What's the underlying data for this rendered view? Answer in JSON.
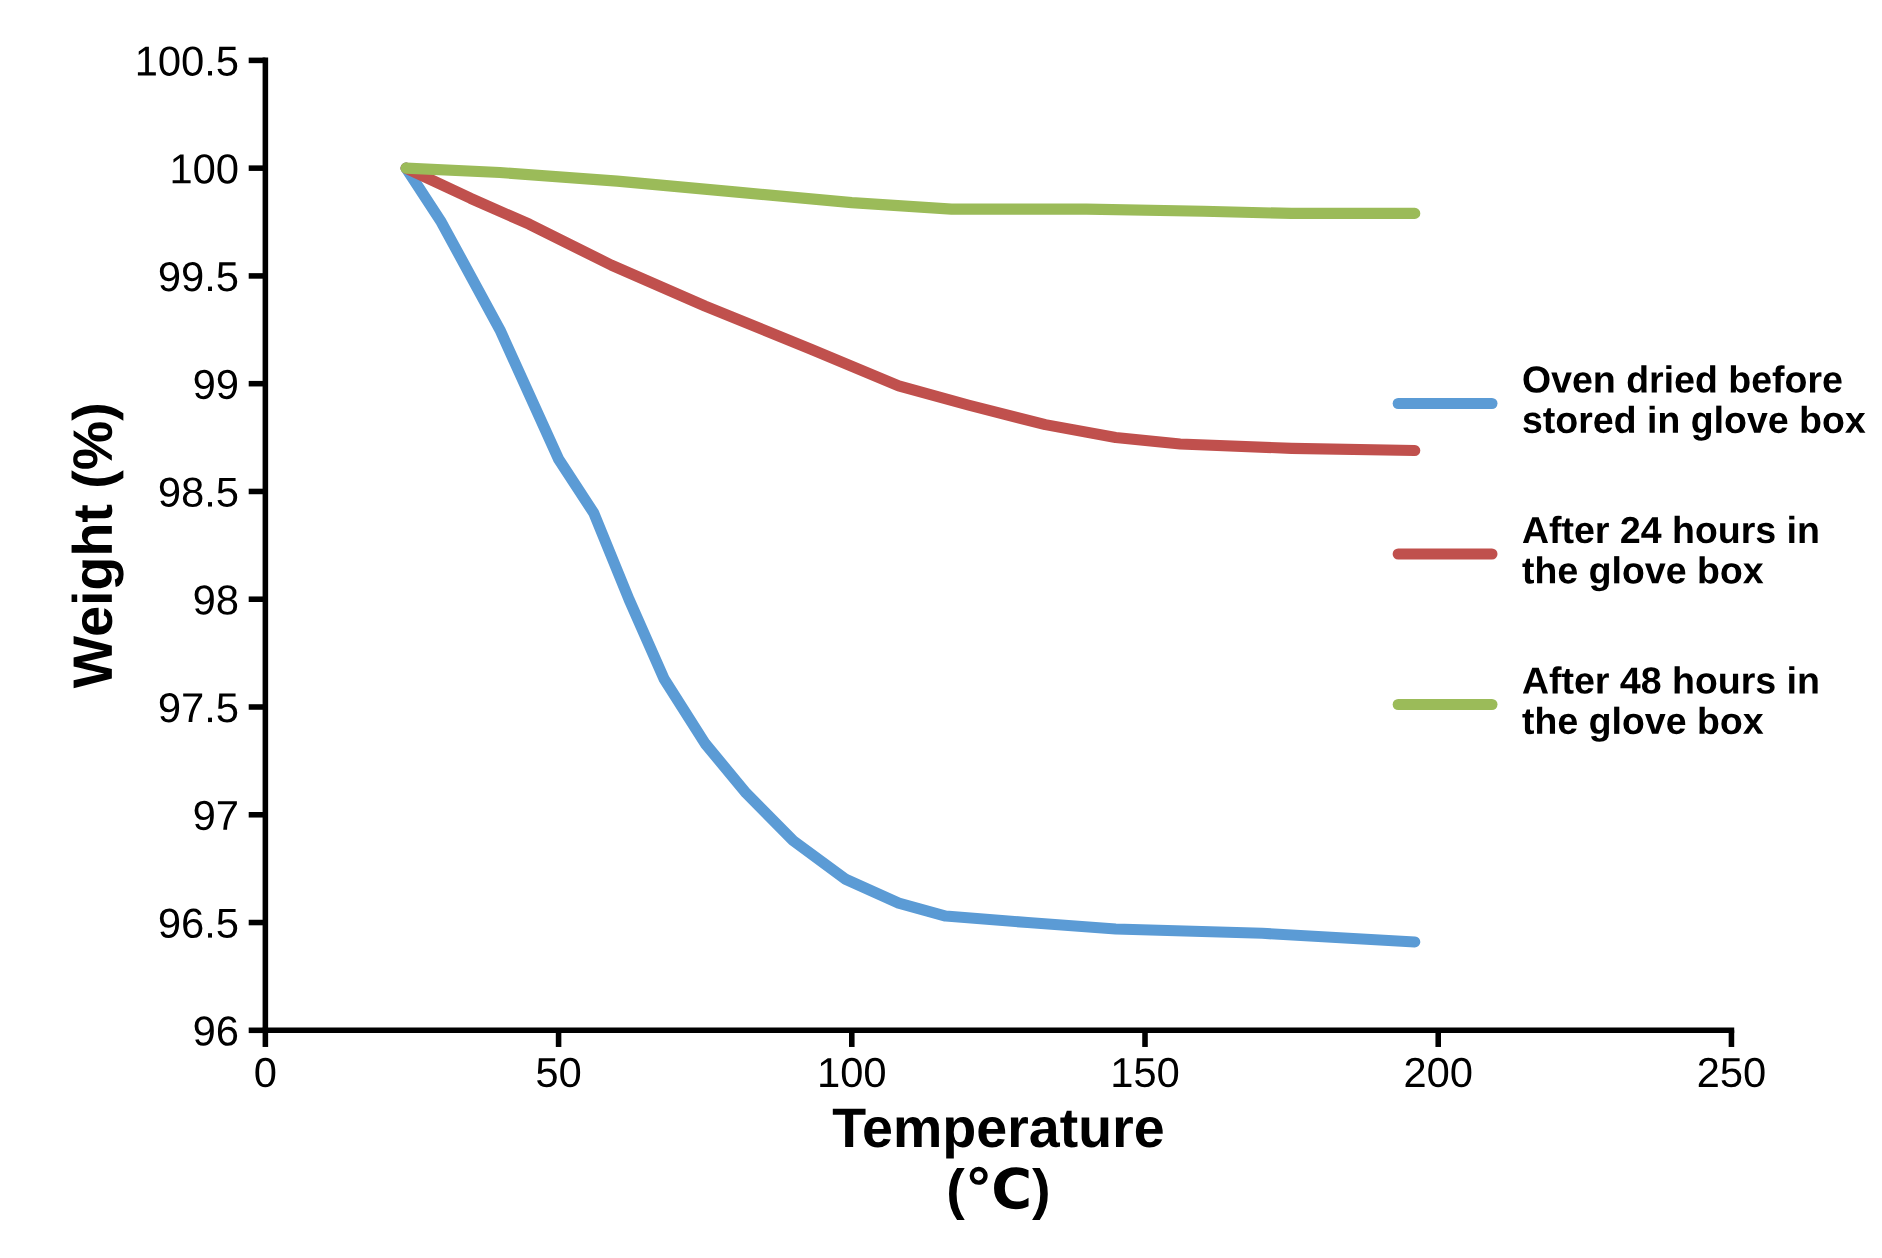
{
  "chart_data": {
    "type": "line",
    "xlabel": "Temperature\n(℃)",
    "ylabel": "Weight (%)",
    "xlim": [
      0,
      250
    ],
    "xticks": [
      0,
      50,
      100,
      150,
      200,
      250
    ],
    "ylim": [
      96,
      100.5
    ],
    "yticks": [
      96,
      96.5,
      97,
      97.5,
      98,
      98.5,
      99,
      99.5,
      100,
      100.5
    ],
    "grid": false,
    "legend": "right",
    "marker": "none",
    "line_style": "solid",
    "series": [
      {
        "name": "Oven dried before\nstored in glove box",
        "color": "#5b9bd5",
        "x": [
          24,
          30,
          40,
          50,
          56,
          62,
          68,
          75,
          82,
          90,
          99,
          108,
          116,
          130,
          145,
          170,
          196
        ],
        "values": [
          100,
          99.75,
          99.25,
          98.65,
          98.4,
          98.0,
          97.63,
          97.33,
          97.1,
          96.88,
          96.7,
          96.59,
          96.53,
          96.5,
          96.47,
          96.45,
          96.41
        ]
      },
      {
        "name": "After 24 hours in\nthe glove box",
        "color": "#c0504d",
        "x": [
          24,
          35,
          45,
          59,
          75,
          93,
          108,
          120,
          133,
          145,
          156,
          175,
          196
        ],
        "values": [
          100,
          99.86,
          99.74,
          99.55,
          99.36,
          99.16,
          98.99,
          98.9,
          98.81,
          98.75,
          98.72,
          98.7,
          98.69
        ]
      },
      {
        "name": "After 48 hours in\nthe glove box",
        "color": "#9bbb59",
        "x": [
          24,
          40,
          60,
          80,
          100,
          117,
          140,
          160,
          175,
          196
        ],
        "values": [
          100,
          99.98,
          99.94,
          99.89,
          99.84,
          99.81,
          99.81,
          99.8,
          99.79,
          99.79
        ]
      }
    ]
  }
}
